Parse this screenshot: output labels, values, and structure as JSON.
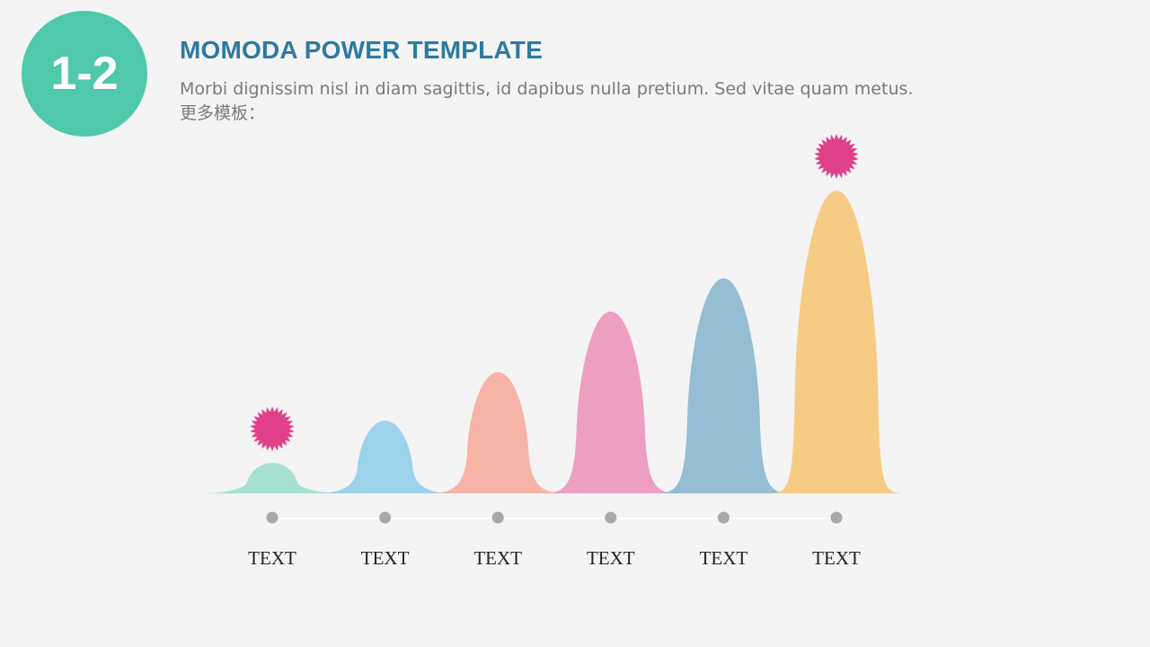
{
  "badge": {
    "label": "1-2"
  },
  "header": {
    "title": "MOMODA POWER TEMPLATE",
    "subtitle_line1": "Morbi dignissim nisl in diam sagittis, id dapibus nulla pretium. Sed vitae quam metus.",
    "subtitle_line2": "更多模板："
  },
  "colors": {
    "badge": "#4fc8ac",
    "title": "#2e7aa0",
    "marker": "#e0408a",
    "dot": "#a8a8a8"
  },
  "chart_data": {
    "type": "area",
    "categories": [
      "TEXT",
      "TEXT",
      "TEXT",
      "TEXT",
      "TEXT",
      "TEXT"
    ],
    "values": [
      10,
      24,
      40,
      60,
      71,
      100
    ],
    "ylim": [
      0,
      100
    ],
    "bar_colors": [
      "#a6e0d2",
      "#9dd3ea",
      "#f7b3a5",
      "#ee9fc1",
      "#95bdd4",
      "#f6cc85"
    ],
    "highlighted": [
      0,
      5
    ],
    "grid": false,
    "legend": "none"
  }
}
